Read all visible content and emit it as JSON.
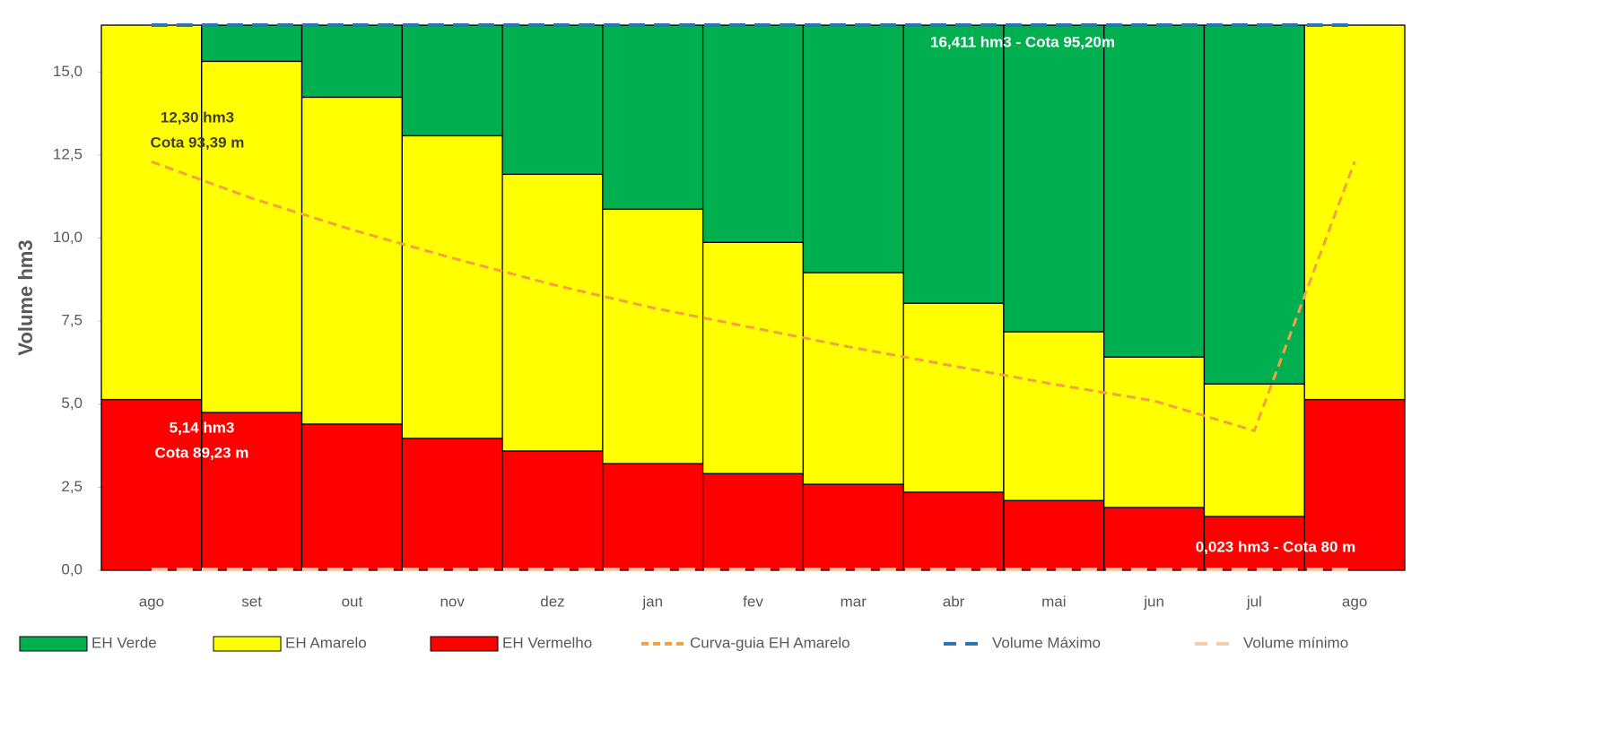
{
  "chart_data": {
    "type": "bar",
    "ylabel": "Volume hm3",
    "categories": [
      "ago",
      "set",
      "out",
      "nov",
      "dez",
      "jan",
      "fev",
      "mar",
      "abr",
      "mai",
      "jun",
      "jul",
      "ago"
    ],
    "ylim": [
      0,
      16.411
    ],
    "yticks": [
      {
        "value": 0,
        "label": "0,0"
      },
      {
        "value": 2.5,
        "label": "2,5"
      },
      {
        "value": 5,
        "label": "5,0"
      },
      {
        "value": 7.5,
        "label": "7,5"
      },
      {
        "value": 10,
        "label": "10,0"
      },
      {
        "value": 12.5,
        "label": "12,5"
      },
      {
        "value": 15,
        "label": "15,0"
      }
    ],
    "series": [
      {
        "name": "EH Verde",
        "type": "bar",
        "color": "#00b050",
        "values": [
          0,
          1.09,
          2.17,
          3.33,
          4.49,
          5.54,
          6.54,
          7.45,
          8.37,
          9.23,
          9.99,
          10.8,
          0
        ]
      },
      {
        "name": "EH Amarelo",
        "type": "bar",
        "color": "#ffff00",
        "values": [
          11.27,
          10.57,
          9.84,
          9.11,
          8.33,
          7.66,
          6.96,
          6.37,
          5.69,
          5.08,
          4.53,
          3.99,
          11.27
        ]
      },
      {
        "name": "EH Vermelho",
        "type": "bar",
        "color": "#ff0000",
        "values": [
          5.14,
          4.75,
          4.4,
          3.97,
          3.59,
          3.21,
          2.91,
          2.59,
          2.35,
          2.1,
          1.89,
          1.62,
          5.14
        ]
      },
      {
        "name": "Curva-guia EH Amarelo",
        "type": "line",
        "color": "#f4a142",
        "dash": "10 6",
        "values": [
          12.3,
          11.2,
          10.25,
          9.4,
          8.6,
          7.9,
          7.3,
          6.7,
          6.15,
          5.6,
          5.1,
          4.2,
          12.3
        ]
      },
      {
        "name": "Volume Máximo",
        "type": "line",
        "color": "#2e75b6",
        "dash": "18 10",
        "values": [
          16.411,
          16.411,
          16.411,
          16.411,
          16.411,
          16.411,
          16.411,
          16.411,
          16.411,
          16.411,
          16.411,
          16.411,
          16.411
        ]
      },
      {
        "name": "Volume mínimo",
        "type": "line",
        "color": "#f8cbad",
        "dash": "18 10",
        "values": [
          0.023,
          0.023,
          0.023,
          0.023,
          0.023,
          0.023,
          0.023,
          0.023,
          0.023,
          0.023,
          0.023,
          0.023,
          0.023
        ]
      }
    ],
    "annotations": [
      "12,30 hm3",
      "Cota 93,39 m",
      "5,14 hm3",
      "Cota 89,23 m",
      "16,411 hm3 - Cota 95,20m",
      "0,023 hm3 - Cota 80 m"
    ]
  }
}
